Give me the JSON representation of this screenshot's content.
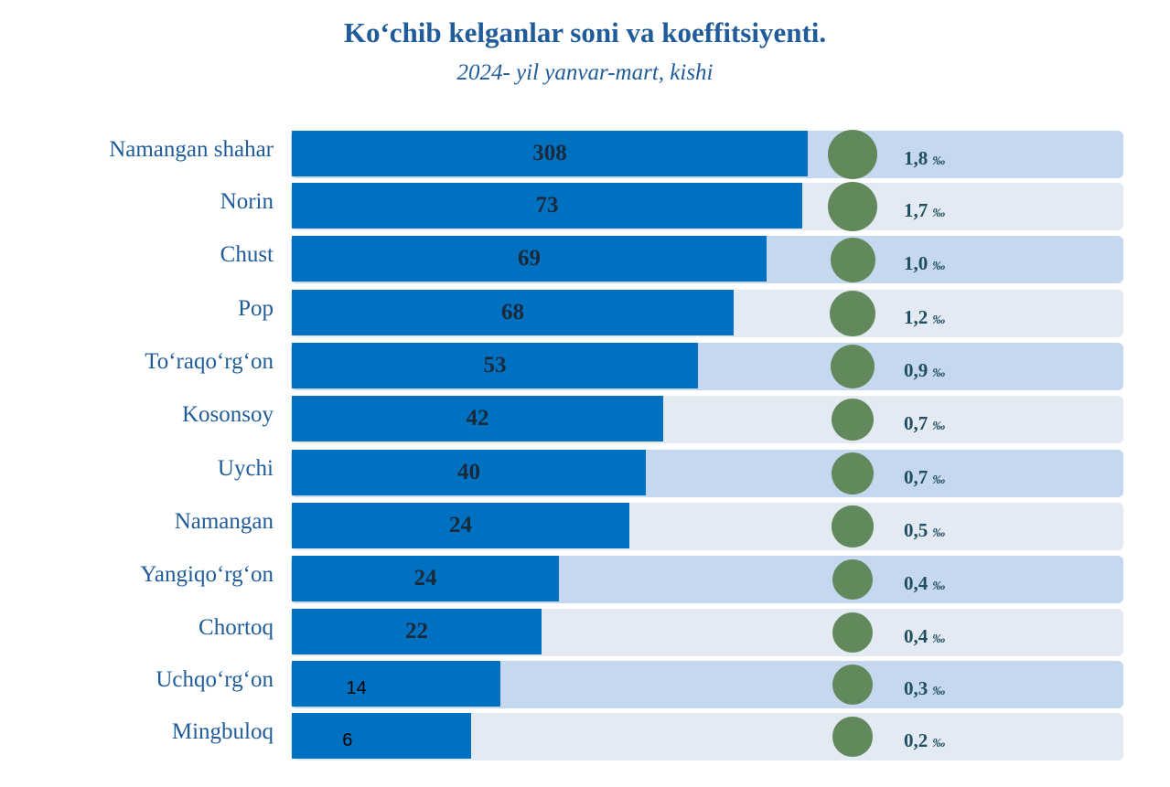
{
  "chart_data": {
    "type": "bar",
    "title": "Ko‘chib kelganlar soni va koeffitsiyenti.",
    "subtitle": "2024- yil yanvar-mart, kishi",
    "categories": [
      "Namangan shahar",
      "Norin",
      "Chust",
      "Pop",
      "To‘raqo‘rg‘on",
      "Kosonsoy",
      "Uychi",
      "Namangan",
      "Yangiqo‘rg‘on",
      "Chortoq",
      "Uchqo‘rg‘on",
      "Mingbuloq"
    ],
    "values": [
      308,
      73,
      69,
      68,
      53,
      42,
      40,
      24,
      24,
      22,
      14,
      6
    ],
    "coefficients": [
      "1,8",
      "1,7",
      "1,0",
      "1,2",
      "0,9",
      "0,7",
      "0,7",
      "0,5",
      "0,4",
      "0,4",
      "0,3",
      "0,2"
    ],
    "coefficient_unit": "‰",
    "colors": {
      "bar": "#0070c0",
      "row_a": "#c5d8ef",
      "row_b": "#e3eaf3",
      "dot": "#62895b",
      "text": "#1f5c99"
    }
  }
}
